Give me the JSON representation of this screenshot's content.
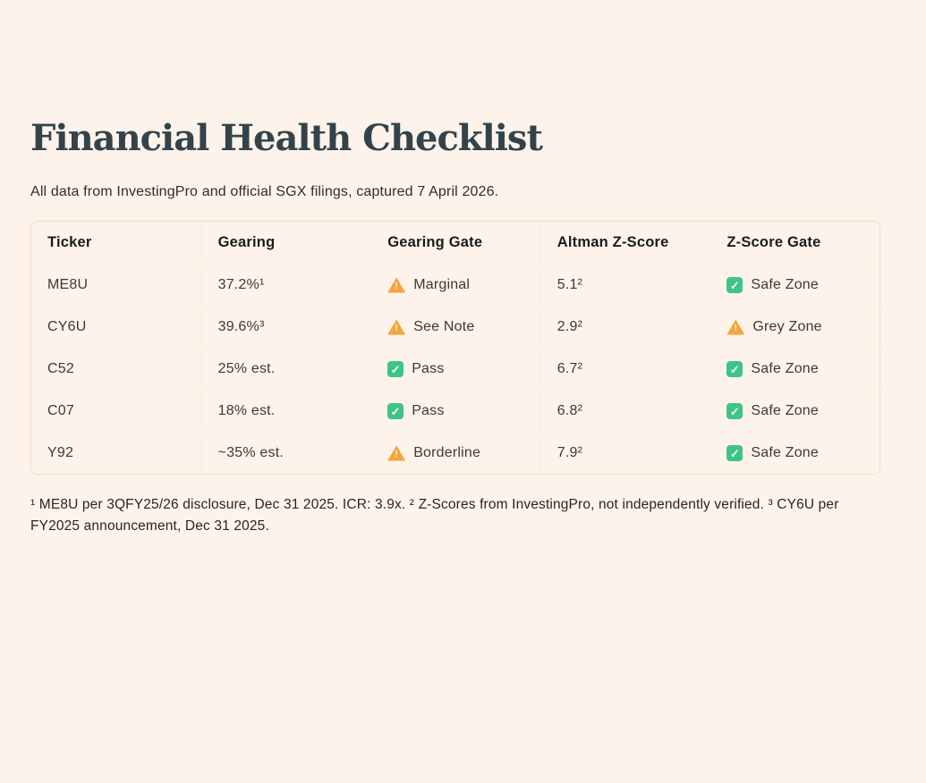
{
  "page": {
    "title": "Financial Health Checklist",
    "subtitle": "All data from InvestingPro and official SGX filings, captured 7 April 2026."
  },
  "table": {
    "columns": [
      "Ticker",
      "Gearing",
      "Gearing Gate",
      "Altman Z-Score",
      "Z-Score Gate"
    ],
    "rows": [
      {
        "ticker": "ME8U",
        "gearing": "37.2%¹",
        "gearing_gate": {
          "icon": "warning-icon",
          "label": "Marginal"
        },
        "z_score": "5.1²",
        "z_gate": {
          "icon": "check-icon",
          "label": "Safe Zone"
        }
      },
      {
        "ticker": "CY6U",
        "gearing": "39.6%³",
        "gearing_gate": {
          "icon": "warning-icon",
          "label": "See Note"
        },
        "z_score": "2.9²",
        "z_gate": {
          "icon": "warning-icon",
          "label": "Grey Zone"
        }
      },
      {
        "ticker": "C52",
        "gearing": "25% est.",
        "gearing_gate": {
          "icon": "check-icon",
          "label": "Pass"
        },
        "z_score": "6.7²",
        "z_gate": {
          "icon": "check-icon",
          "label": "Safe Zone"
        }
      },
      {
        "ticker": "C07",
        "gearing": "18% est.",
        "gearing_gate": {
          "icon": "check-icon",
          "label": "Pass"
        },
        "z_score": "6.8²",
        "z_gate": {
          "icon": "check-icon",
          "label": "Safe Zone"
        }
      },
      {
        "ticker": "Y92",
        "gearing": "~35% est.",
        "gearing_gate": {
          "icon": "warning-icon",
          "label": "Borderline"
        },
        "z_score": "7.9²",
        "z_gate": {
          "icon": "check-icon",
          "label": "Safe Zone"
        }
      }
    ]
  },
  "footnotes": "¹ ME8U per 3QFY25/26 disclosure, Dec 31 2025. ICR: 3.9x. ² Z-Scores from InvestingPro, not independently verified. ³ CY6U per FY2025 announcement, Dec 31 2025.",
  "colors": {
    "background": "#FDF3EA",
    "title": "#33434C",
    "warning": "#F2A63C",
    "success": "#3EC489"
  }
}
